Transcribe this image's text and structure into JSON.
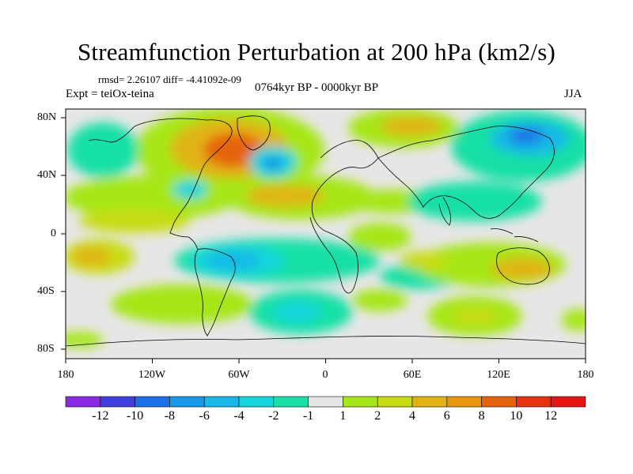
{
  "title": "Streamfunction Perturbation at 200 hPa (km2/s)",
  "stats": "rmsd= 2.26107 diff= -4.41092e-09",
  "experiment": "Expt = teiOx-teina",
  "period": "0764kyr BP - 0000kyr BP",
  "season": "JJA",
  "lat_labels": [
    "80N",
    "40N",
    "0",
    "40S",
    "80S"
  ],
  "lon_labels": [
    "180",
    "120W",
    "60W",
    "0",
    "60E",
    "120E",
    "180"
  ],
  "colorbar": {
    "labels": [
      "-12",
      "-10",
      "-8",
      "-6",
      "-4",
      "-2",
      "-1",
      "1",
      "2",
      "4",
      "6",
      "8",
      "10",
      "12"
    ],
    "colors": [
      "#8a2be2",
      "#3f3fe0",
      "#1e6ee6",
      "#1a97e6",
      "#19b8e6",
      "#17d6dc",
      "#19e0a6",
      "#e6e6e6",
      "#a6e619",
      "#c8dc14",
      "#e0b414",
      "#e6960f",
      "#e6640f",
      "#e6320f",
      "#e61414"
    ]
  },
  "colors": {
    "neutral": "#e6e6e6",
    "coast": "#000000"
  }
}
